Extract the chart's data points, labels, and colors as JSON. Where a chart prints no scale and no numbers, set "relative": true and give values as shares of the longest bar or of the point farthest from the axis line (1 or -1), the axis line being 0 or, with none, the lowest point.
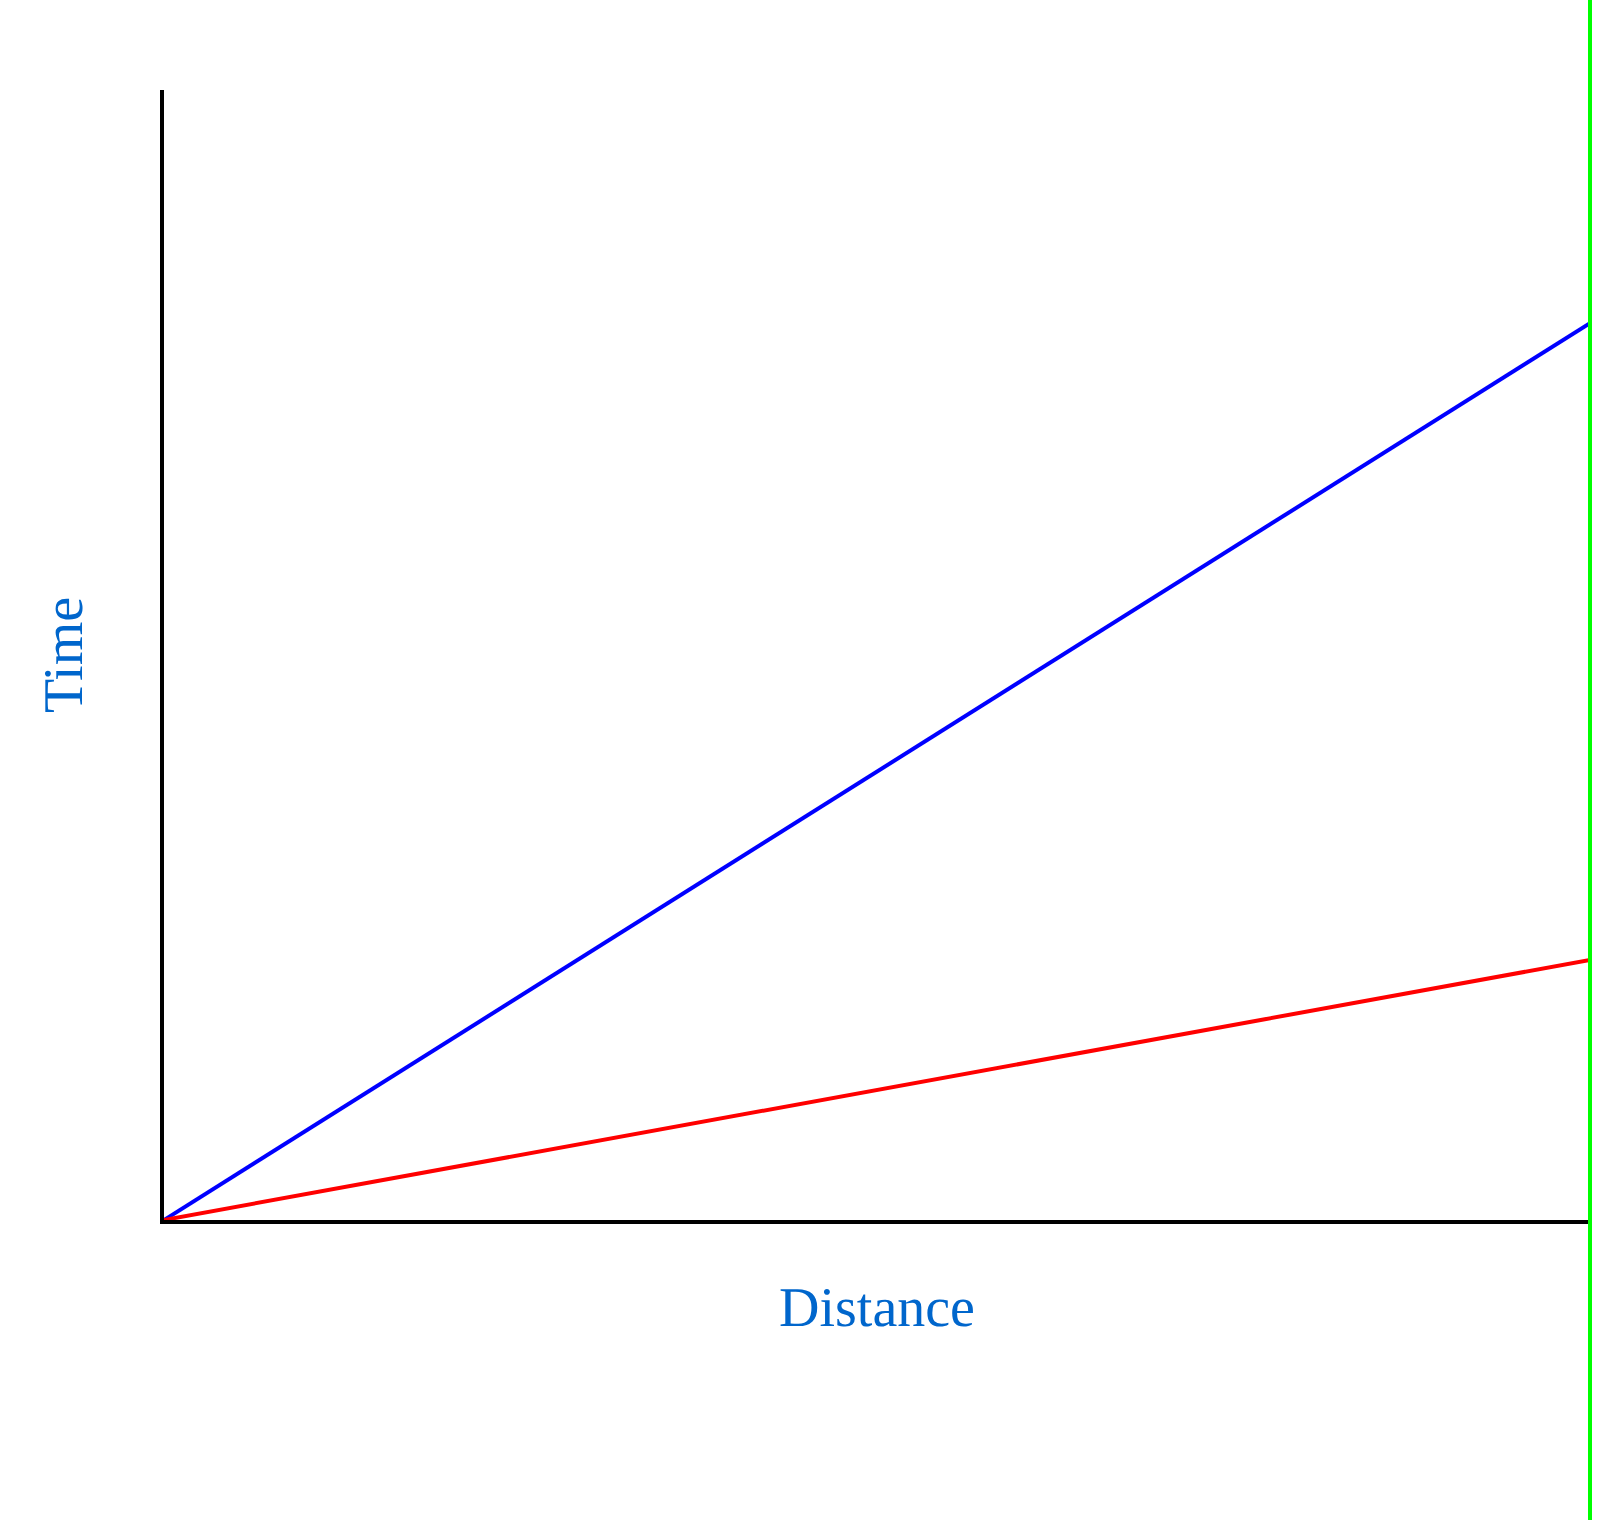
{
  "chart_data": {
    "type": "line",
    "relative": true,
    "xlabel": "Distance",
    "ylabel": "Time",
    "categories": [
      null,
      null
    ],
    "series": [
      {
        "color": "#0000ff",
        "values": [
          0,
          1
        ]
      },
      {
        "color": "#ff0000",
        "values": [
          0,
          0.29
        ]
      }
    ],
    "grid": false,
    "marker": "none",
    "line_style": "solid"
  }
}
